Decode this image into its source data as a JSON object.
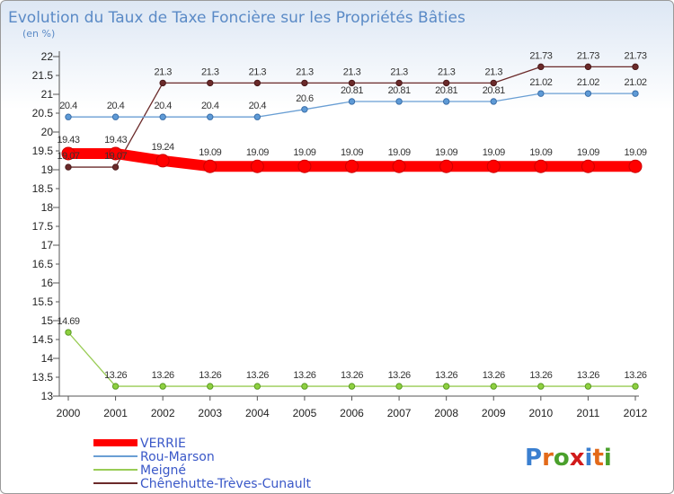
{
  "chart_data": {
    "type": "line",
    "title": "Evolution du Taux de Taxe Foncière sur les Propriétés Bâties",
    "ylabel": "(en %)",
    "xlabel": "",
    "ylim": [
      13,
      22
    ],
    "ytick_step": 0.5,
    "x": [
      "2000",
      "2001",
      "2002",
      "2003",
      "2004",
      "2005",
      "2006",
      "2007",
      "2008",
      "2009",
      "2010",
      "2011",
      "2012"
    ],
    "series": [
      {
        "name": "Chênehutte-Trèves-Cunault",
        "color": "#6b2a2a",
        "values": [
          19.07,
          19.07,
          21.3,
          21.3,
          21.3,
          21.3,
          21.3,
          21.3,
          21.3,
          21.3,
          21.73,
          21.73,
          21.73
        ]
      },
      {
        "name": "Rou-Marson",
        "color": "#6a9fd4",
        "values": [
          20.4,
          20.4,
          20.4,
          20.4,
          20.4,
          20.6,
          20.81,
          20.81,
          20.81,
          20.81,
          21.02,
          21.02,
          21.02
        ]
      },
      {
        "name": "Meigné",
        "color": "#99cc55",
        "values": [
          14.69,
          13.26,
          13.26,
          13.26,
          13.26,
          13.26,
          13.26,
          13.26,
          13.26,
          13.26,
          13.26,
          13.26,
          13.26
        ]
      },
      {
        "name": "VERRIE",
        "color": "#ff0000",
        "values": [
          19.43,
          19.43,
          19.24,
          19.09,
          19.09,
          19.09,
          19.09,
          19.09,
          19.09,
          19.09,
          19.09,
          19.09,
          19.09
        ]
      }
    ],
    "legend": [
      "VERRIE",
      "Rou-Marson",
      "Meigné",
      "Chênehutte-Trèves-Cunault"
    ],
    "legend_position": "bottom-left"
  },
  "logo": {
    "chars": [
      "P",
      "r",
      "o",
      "x",
      "i",
      "t",
      "i"
    ],
    "colors": [
      "#3a7fd0",
      "#e36a1a",
      "#4aa02c",
      "#d11b1b",
      "#3a7fd0",
      "#e36a1a",
      "#4aa02c"
    ]
  }
}
